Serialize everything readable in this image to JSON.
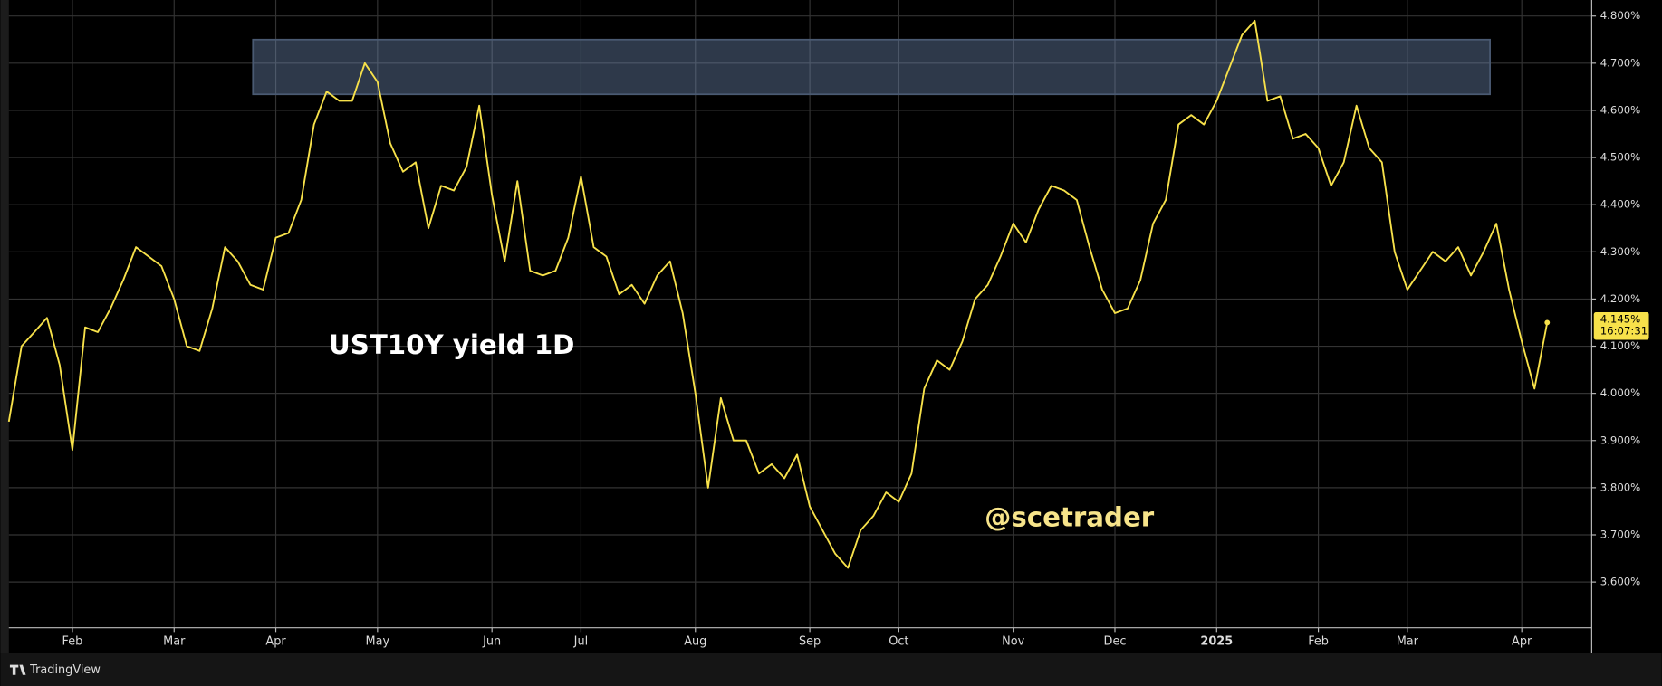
{
  "chart_data": {
    "type": "line",
    "title": "UST10Y yield  1D",
    "watermark": "@scetrader",
    "branding": "TradingView",
    "grid": true,
    "categories": [
      null,
      null,
      null,
      null,
      null,
      "Feb",
      null,
      null,
      null,
      null,
      null,
      null,
      null,
      "Mar",
      null,
      null,
      null,
      null,
      null,
      null,
      null,
      "Apr",
      null,
      null,
      null,
      null,
      null,
      null,
      null,
      "May",
      null,
      null,
      null,
      null,
      null,
      null,
      null,
      null,
      "Jun",
      null,
      null,
      null,
      null,
      null,
      null,
      "Jul",
      null,
      null,
      null,
      null,
      null,
      null,
      null,
      null,
      "Aug",
      null,
      null,
      null,
      null,
      null,
      null,
      null,
      null,
      "Sep",
      null,
      null,
      null,
      null,
      null,
      null,
      "Oct",
      null,
      null,
      null,
      null,
      null,
      null,
      null,
      null,
      "Nov",
      null,
      null,
      null,
      null,
      null,
      null,
      null,
      "Dec",
      null,
      null,
      null,
      null,
      null,
      null,
      null,
      "2025",
      null,
      null,
      null,
      null,
      null,
      null,
      null,
      "Feb",
      null,
      null,
      null,
      null,
      null,
      null,
      "Mar",
      null,
      null,
      null,
      null,
      null,
      null,
      null,
      null,
      "Apr",
      null,
      null
    ],
    "series": [
      {
        "name": "UST10Y",
        "color": "#f7e14a",
        "values": [
          3.94,
          4.1,
          4.13,
          4.16,
          4.06,
          3.88,
          4.14,
          4.13,
          4.18,
          4.24,
          4.31,
          4.29,
          4.27,
          4.2,
          4.1,
          4.09,
          4.18,
          4.31,
          4.28,
          4.23,
          4.22,
          4.33,
          4.34,
          4.41,
          4.57,
          4.64,
          4.62,
          4.62,
          4.7,
          4.66,
          4.53,
          4.47,
          4.49,
          4.35,
          4.44,
          4.43,
          4.48,
          4.61,
          4.42,
          4.28,
          4.45,
          4.26,
          4.25,
          4.26,
          4.33,
          4.46,
          4.31,
          4.29,
          4.21,
          4.23,
          4.19,
          4.25,
          4.28,
          4.17,
          4.0,
          3.8,
          3.99,
          3.9,
          3.9,
          3.83,
          3.85,
          3.82,
          3.87,
          3.76,
          3.71,
          3.66,
          3.63,
          3.71,
          3.74,
          3.79,
          3.77,
          3.83,
          4.01,
          4.07,
          4.05,
          4.11,
          4.2,
          4.23,
          4.29,
          4.36,
          4.32,
          4.39,
          4.44,
          4.43,
          4.41,
          4.31,
          4.22,
          4.17,
          4.18,
          4.24,
          4.36,
          4.41,
          4.57,
          4.59,
          4.57,
          4.62,
          4.69,
          4.76,
          4.79,
          4.62,
          4.63,
          4.54,
          4.55,
          4.52,
          4.44,
          4.49,
          4.61,
          4.52,
          4.49,
          4.3,
          4.22,
          4.26,
          4.3,
          4.28,
          4.31,
          4.25,
          4.3,
          4.36,
          4.22,
          4.11,
          4.01,
          4.15
        ]
      }
    ],
    "ylim": [
      3.503,
      4.834
    ],
    "yticks": [
      {
        "value": 3.6,
        "label": "3.600%"
      },
      {
        "value": 3.7,
        "label": "3.700%"
      },
      {
        "value": 3.8,
        "label": "3.800%"
      },
      {
        "value": 3.9,
        "label": "3.900%"
      },
      {
        "value": 4.0,
        "label": "4.000%"
      },
      {
        "value": 4.1,
        "label": "4.100%"
      },
      {
        "value": 4.2,
        "label": "4.200%"
      },
      {
        "value": 4.3,
        "label": "4.300%"
      },
      {
        "value": 4.4,
        "label": "4.400%"
      },
      {
        "value": 4.5,
        "label": "4.500%"
      },
      {
        "value": 4.6,
        "label": "4.600%"
      },
      {
        "value": 4.7,
        "label": "4.700%"
      },
      {
        "value": 4.8,
        "label": "4.800%"
      }
    ],
    "last_price": {
      "value": 4.145,
      "label": "4.145%",
      "countdown": "16:07:31"
    },
    "highlight_zone": {
      "y_range": [
        4.634,
        4.75
      ],
      "start_index": 19.2,
      "end_index": 116.5
    }
  }
}
